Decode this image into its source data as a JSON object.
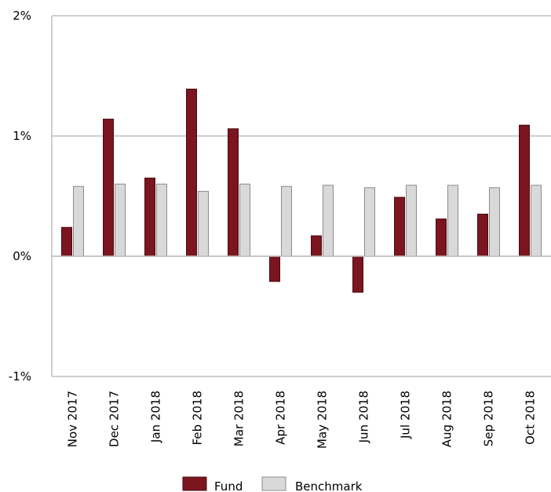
{
  "chart_data": {
    "type": "bar",
    "categories": [
      "Nov 2017",
      "Dec 2017",
      "Jan 2018",
      "Feb 2018",
      "Mar 2018",
      "Apr 2018",
      "May 2018",
      "Jun 2018",
      "Jul 2018",
      "Aug 2018",
      "Sep 2018",
      "Oct 2018"
    ],
    "series": [
      {
        "name": "Fund",
        "color": "#7b1520",
        "values": [
          0.24,
          1.14,
          0.65,
          1.39,
          1.06,
          -0.21,
          0.17,
          -0.3,
          0.49,
          0.31,
          0.35,
          1.09
        ]
      },
      {
        "name": "Benchmark",
        "color": "#d9d9d9",
        "values": [
          0.58,
          0.6,
          0.6,
          0.54,
          0.6,
          0.58,
          0.59,
          0.57,
          0.59,
          0.59,
          0.57,
          0.59
        ]
      }
    ],
    "ylim": [
      -1,
      2
    ],
    "yticks": [
      2,
      1,
      0,
      -1
    ],
    "ytick_labels": [
      "2%",
      "1%",
      "0%",
      "-1%"
    ],
    "grid": true,
    "legend_position": "bottom",
    "title": "",
    "xlabel": "",
    "ylabel": ""
  }
}
